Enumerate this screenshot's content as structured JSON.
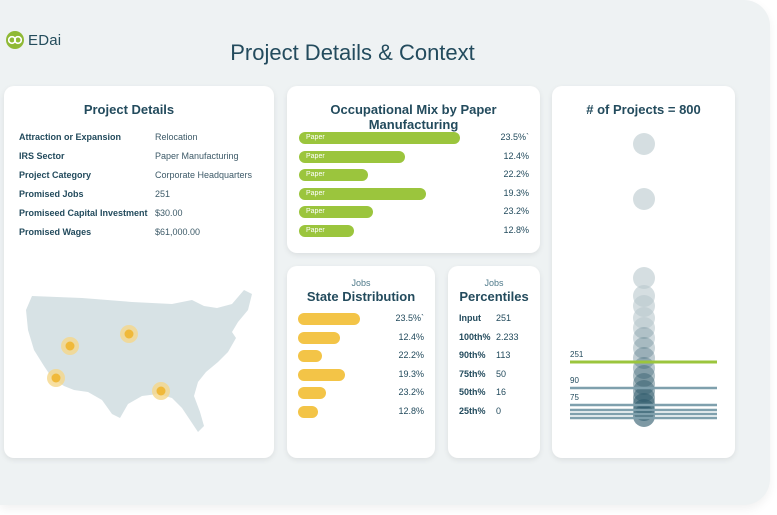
{
  "brand": {
    "name": "EDai",
    "accent": "#8fb935",
    "yellow": "#f3c447",
    "teal": "#234b5d"
  },
  "page": {
    "title": "Project Details & Context"
  },
  "details": {
    "title": "Project Details",
    "rows": [
      {
        "key": "Attraction or Expansion",
        "value": "Relocation"
      },
      {
        "key": "IRS Sector",
        "value": "Paper Manufacturing"
      },
      {
        "key": "Project Category",
        "value": "Corporate Headquarters"
      },
      {
        "key": "Promised Jobs",
        "value": "251"
      },
      {
        "key": "Promiseed Capital Investment",
        "value": "$30.00"
      },
      {
        "key": "Promised Wages",
        "value": "$61,000.00"
      }
    ],
    "map_markers": 4
  },
  "occupational_mix": {
    "title": "Occupational Mix by Paper Manufacturing",
    "rows": [
      {
        "label": "Paper",
        "pct": "23.5%`",
        "fill": 0.7
      },
      {
        "label": "Paper",
        "pct": "12.4%",
        "fill": 0.46
      },
      {
        "label": "Paper",
        "pct": "22.2%",
        "fill": 0.3
      },
      {
        "label": "Paper",
        "pct": "19.3%",
        "fill": 0.55
      },
      {
        "label": "Paper",
        "pct": "23.2%",
        "fill": 0.32
      },
      {
        "label": "Paper",
        "pct": "12.8%",
        "fill": 0.24
      }
    ]
  },
  "state_distribution": {
    "subtitle": "Jobs",
    "title": "State Distribution",
    "rows": [
      {
        "pct": "23.5%`",
        "fill": 0.49
      },
      {
        "pct": "12.4%",
        "fill": 0.33
      },
      {
        "pct": "22.2%",
        "fill": 0.19
      },
      {
        "pct": "19.3%",
        "fill": 0.37
      },
      {
        "pct": "23.2%",
        "fill": 0.22
      },
      {
        "pct": "12.8%",
        "fill": 0.16
      }
    ]
  },
  "percentiles": {
    "subtitle": "Jobs",
    "title": "Percentiles",
    "rows": [
      {
        "key": "Input",
        "value": "251"
      },
      {
        "key": "100th%",
        "value": "2.233"
      },
      {
        "key": "90th%",
        "value": "113"
      },
      {
        "key": "75th%",
        "value": "50"
      },
      {
        "key": "50th%",
        "value": "16"
      },
      {
        "key": "25th%",
        "value": "0"
      }
    ]
  },
  "projects": {
    "title": "# of Projects = 800",
    "lines": [
      {
        "label": "251",
        "color": "#9bc53d"
      },
      {
        "label": "90",
        "color": "#7fa0ad"
      },
      {
        "label": "75",
        "color": "#7fa0ad"
      },
      {
        "label": "",
        "color": "#7fa0ad"
      },
      {
        "label": "",
        "color": "#7fa0ad"
      },
      {
        "label": "",
        "color": "#7fa0ad"
      }
    ]
  }
}
